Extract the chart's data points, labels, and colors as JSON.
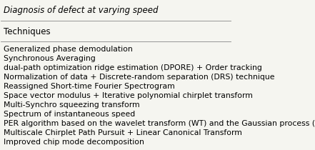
{
  "title": "Diagnosis of defect at varying speed",
  "header": "Techniques",
  "rows": [
    "Generalized phase demodulation",
    "Synchronous Averaging",
    "dual-path optimization ridge estimation (DPORE) + Order tracking",
    "Normalization of data + Discrete-random separation (DRS) technique",
    "Reassigned Short-time Fourier Spectrogram",
    "Space vector modulus + Iterative polynomial chirplet transform",
    "Multi-Synchro squeezing transform",
    "Spectrum of instantaneous speed",
    "PER algorithm based on the wavelet transform (WT) and the Gaussian process (GP)",
    "Multiscale Chirplet Path Pursuit + Linear Canonical Transform",
    "Improved chip mode decomposition"
  ],
  "bg_color": "#f5f5f0",
  "title_fontsize": 8.5,
  "header_fontsize": 8.5,
  "row_fontsize": 7.8,
  "title_fontstyle": "italic",
  "line_color": "#888888"
}
